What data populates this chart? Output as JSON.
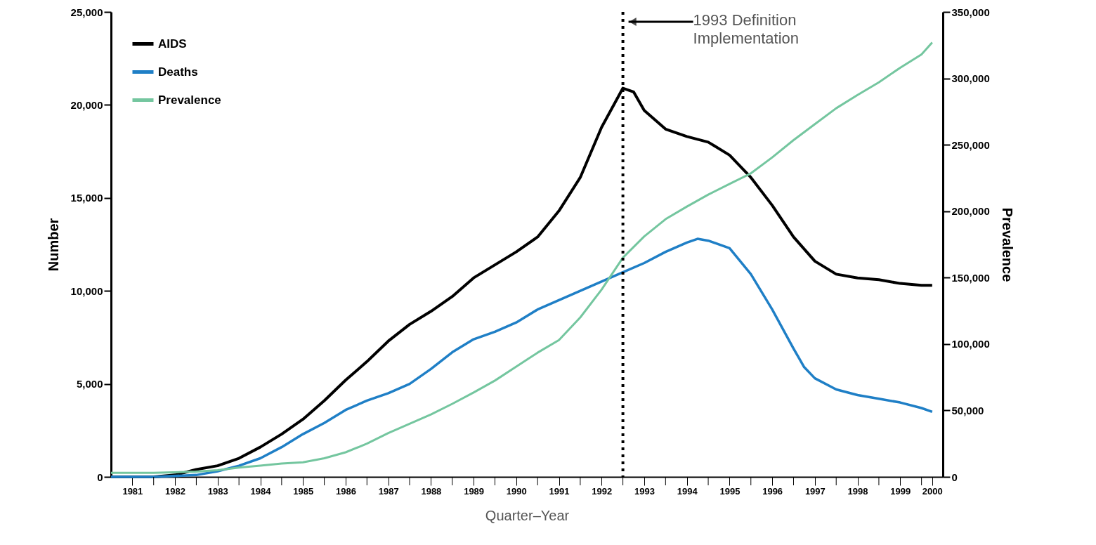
{
  "chart_data": {
    "type": "line",
    "xlabel": "Quarter–Year",
    "ylabel": "Number",
    "y2label": "Prevalence",
    "xlim": [
      1981,
      2000.5
    ],
    "xticks": [
      {
        "value": 1981.5,
        "label": "1981"
      },
      {
        "value": 1982,
        "label": null
      },
      {
        "value": 1982.5,
        "label": "1982"
      },
      {
        "value": 1983,
        "label": null
      },
      {
        "value": 1983.5,
        "label": "1983"
      },
      {
        "value": 1984,
        "label": null
      },
      {
        "value": 1984.5,
        "label": "1984"
      },
      {
        "value": 1985,
        "label": null
      },
      {
        "value": 1985.5,
        "label": "1985"
      },
      {
        "value": 1986,
        "label": null
      },
      {
        "value": 1986.5,
        "label": "1986"
      },
      {
        "value": 1987,
        "label": null
      },
      {
        "value": 1987.5,
        "label": "1987"
      },
      {
        "value": 1988,
        "label": null
      },
      {
        "value": 1988.5,
        "label": "1988"
      },
      {
        "value": 1989,
        "label": null
      },
      {
        "value": 1989.5,
        "label": "1989"
      },
      {
        "value": 1990,
        "label": null
      },
      {
        "value": 1990.5,
        "label": "1990"
      },
      {
        "value": 1991,
        "label": null
      },
      {
        "value": 1991.5,
        "label": "1991"
      },
      {
        "value": 1992,
        "label": null
      },
      {
        "value": 1992.5,
        "label": "1992"
      },
      {
        "value": 1993,
        "label": null
      },
      {
        "value": 1993.5,
        "label": "1993"
      },
      {
        "value": 1994,
        "label": null
      },
      {
        "value": 1994.5,
        "label": "1994"
      },
      {
        "value": 1995,
        "label": null
      },
      {
        "value": 1995.5,
        "label": "1995"
      },
      {
        "value": 1996,
        "label": null
      },
      {
        "value": 1996.5,
        "label": "1996"
      },
      {
        "value": 1997,
        "label": null
      },
      {
        "value": 1997.5,
        "label": "1997"
      },
      {
        "value": 1998,
        "label": null
      },
      {
        "value": 1998.5,
        "label": "1998"
      },
      {
        "value": 1999,
        "label": null
      },
      {
        "value": 1999.5,
        "label": "1999"
      },
      {
        "value": 2000,
        "label": null
      },
      {
        "value": 2000.25,
        "label": "2000"
      }
    ],
    "ylim": [
      0,
      25000
    ],
    "yticks": [
      0,
      {
        "value": 5000,
        "label": "5,000"
      },
      {
        "value": 10000,
        "label": "10,000"
      },
      {
        "value": 15000,
        "label": "15,000"
      },
      {
        "value": 20000,
        "label": "20,000"
      },
      {
        "value": 25000,
        "label": "25,000"
      }
    ],
    "y2lim": [
      0,
      350000
    ],
    "y2ticks": [
      0,
      {
        "value": 50000,
        "label": "50,000"
      },
      {
        "value": 100000,
        "label": "100,000"
      },
      {
        "value": 150000,
        "label": "150,000"
      },
      {
        "value": 200000,
        "label": "200,000"
      },
      {
        "value": 250000,
        "label": "250,000"
      },
      {
        "value": 300000,
        "label": "300,000"
      },
      {
        "value": 350000,
        "label": "350,000"
      }
    ],
    "grid": false,
    "legend": "top left",
    "line_style": "solid",
    "marker": "none",
    "ref_lines": [
      {
        "axis": "x",
        "value": 1993,
        "label": "1993 Definition\nImplementation",
        "color": "#000000",
        "line_style": "dotted"
      }
    ],
    "series": [
      {
        "name": "AIDS",
        "color": "#000000",
        "x": [
          1981,
          1982,
          1982.5,
          1983,
          1983.5,
          1984,
          1984.5,
          1985,
          1985.5,
          1986,
          1986.5,
          1987,
          1987.5,
          1988,
          1988.5,
          1989,
          1989.5,
          1990,
          1990.5,
          1991,
          1991.5,
          1992,
          1992.5,
          1993,
          1993.25,
          1993.5,
          1994,
          1994.5,
          1995,
          1995.5,
          1996,
          1996.5,
          1997,
          1997.5,
          1998,
          1998.5,
          1999,
          1999.5,
          2000,
          2000.25
        ],
        "values": [
          0,
          0,
          100,
          400,
          600,
          1000,
          1600,
          2300,
          3100,
          4100,
          5200,
          6200,
          7300,
          8200,
          8900,
          9700,
          10700,
          11400,
          12100,
          12900,
          14300,
          16100,
          18800,
          20900,
          20700,
          19700,
          18700,
          18300,
          18000,
          17300,
          16100,
          14600,
          12900,
          11600,
          10900,
          10700,
          10600,
          10400,
          10300,
          10300
        ]
      },
      {
        "name": "Deaths",
        "color": "#1f7fc6",
        "x": [
          1981,
          1982,
          1983,
          1983.5,
          1984,
          1984.5,
          1985,
          1985.5,
          1986,
          1986.5,
          1987,
          1987.5,
          1988,
          1988.5,
          1989,
          1989.5,
          1990,
          1990.5,
          1991,
          1991.5,
          1992,
          1992.5,
          1993,
          1993.5,
          1994,
          1994.5,
          1994.75,
          1995,
          1995.5,
          1996,
          1996.5,
          1997,
          1997.25,
          1997.5,
          1998,
          1998.5,
          1999,
          1999.5,
          2000,
          2000.25
        ],
        "values": [
          0,
          0,
          100,
          300,
          600,
          1000,
          1600,
          2300,
          2900,
          3600,
          4100,
          4500,
          5000,
          5800,
          6700,
          7400,
          7800,
          8300,
          9000,
          9500,
          10000,
          10500,
          11000,
          11500,
          12100,
          12600,
          12800,
          12700,
          12300,
          10900,
          9000,
          6900,
          5900,
          5300,
          4700,
          4400,
          4200,
          4000,
          3700,
          3500
        ]
      },
      {
        "name": "Prevalence",
        "color": "#74c69f",
        "axis": "y2",
        "x": [
          1981,
          1982,
          1983,
          1983.5,
          1984,
          1984.5,
          1985,
          1985.5,
          1986,
          1986.5,
          1987,
          1987.5,
          1988,
          1988.5,
          1989,
          1989.5,
          1990,
          1990.5,
          1991,
          1991.5,
          1992,
          1992.5,
          1993,
          1993.5,
          1994,
          1994.5,
          1995,
          1995.5,
          1996,
          1996.5,
          1997,
          1997.5,
          1998,
          1998.5,
          1999,
          1999.5,
          2000,
          2000.25
        ],
        "values": [
          3000,
          3000,
          4000,
          5000,
          7000,
          8500,
          10000,
          11000,
          14000,
          18500,
          25000,
          33000,
          40000,
          47000,
          55000,
          63500,
          72500,
          83000,
          93500,
          103000,
          120000,
          141000,
          165000,
          181000,
          194000,
          203500,
          212500,
          220500,
          228500,
          240500,
          253500,
          265500,
          277500,
          287500,
          297000,
          308000,
          318000,
          327000
        ]
      }
    ]
  }
}
